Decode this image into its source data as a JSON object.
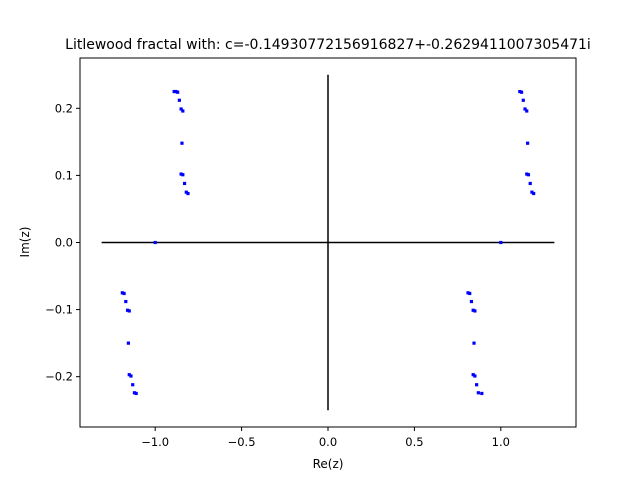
{
  "chart_data": {
    "type": "scatter",
    "title": "Litlewood fractal with: c=-0.14930772156916827+-0.2629411007305471i",
    "xlabel": "Re(z)",
    "ylabel": "Im(z)",
    "xlim": [
      -1.435,
      1.435
    ],
    "ylim": [
      -0.275,
      0.275
    ],
    "xticks": [
      -1.0,
      -0.5,
      0.0,
      0.5,
      1.0
    ],
    "xtick_labels": [
      "−1.0",
      "−0.5",
      "0.0",
      "0.5",
      "1.0"
    ],
    "yticks": [
      -0.2,
      -0.1,
      0.0,
      0.1,
      0.2
    ],
    "ytick_labels": [
      "−0.2",
      "−0.1",
      "0.0",
      "0.1",
      "0.2"
    ],
    "grid": false,
    "reference_lines": [
      {
        "x": [
          -1.31,
          1.31
        ],
        "y": [
          0,
          0
        ],
        "color": "#000000"
      },
      {
        "x": [
          0,
          0
        ],
        "y": [
          -0.25,
          0.25
        ],
        "color": "#000000"
      }
    ],
    "series": [
      {
        "color": "#0000ff",
        "points": [
          [
            -0.89,
            0.225
          ],
          [
            -0.88,
            0.225
          ],
          [
            -0.87,
            0.224
          ],
          [
            -0.86,
            0.212
          ],
          [
            -0.85,
            0.199
          ],
          [
            -0.84,
            0.196
          ],
          [
            -0.845,
            0.148
          ],
          [
            -0.85,
            0.102
          ],
          [
            -0.84,
            0.101
          ],
          [
            -0.83,
            0.088
          ],
          [
            -0.82,
            0.075
          ],
          [
            -0.81,
            0.073
          ],
          [
            -1.0,
            0.0
          ],
          [
            1.11,
            0.225
          ],
          [
            1.12,
            0.224
          ],
          [
            1.13,
            0.212
          ],
          [
            1.14,
            0.199
          ],
          [
            1.15,
            0.196
          ],
          [
            1.155,
            0.148
          ],
          [
            1.15,
            0.102
          ],
          [
            1.16,
            0.101
          ],
          [
            1.17,
            0.088
          ],
          [
            1.18,
            0.075
          ],
          [
            1.19,
            0.073
          ],
          [
            1.0,
            0.0
          ],
          [
            -1.19,
            -0.075
          ],
          [
            -1.18,
            -0.076
          ],
          [
            -1.17,
            -0.088
          ],
          [
            -1.16,
            -0.101
          ],
          [
            -1.15,
            -0.102
          ],
          [
            -1.155,
            -0.15
          ],
          [
            -1.15,
            -0.197
          ],
          [
            -1.14,
            -0.199
          ],
          [
            -1.13,
            -0.212
          ],
          [
            -1.12,
            -0.224
          ],
          [
            -1.11,
            -0.225
          ],
          [
            0.81,
            -0.075
          ],
          [
            0.82,
            -0.076
          ],
          [
            0.83,
            -0.088
          ],
          [
            0.84,
            -0.101
          ],
          [
            0.85,
            -0.102
          ],
          [
            0.845,
            -0.15
          ],
          [
            0.84,
            -0.197
          ],
          [
            0.85,
            -0.199
          ],
          [
            0.86,
            -0.212
          ],
          [
            0.87,
            -0.224
          ],
          [
            0.89,
            -0.225
          ]
        ]
      }
    ]
  }
}
